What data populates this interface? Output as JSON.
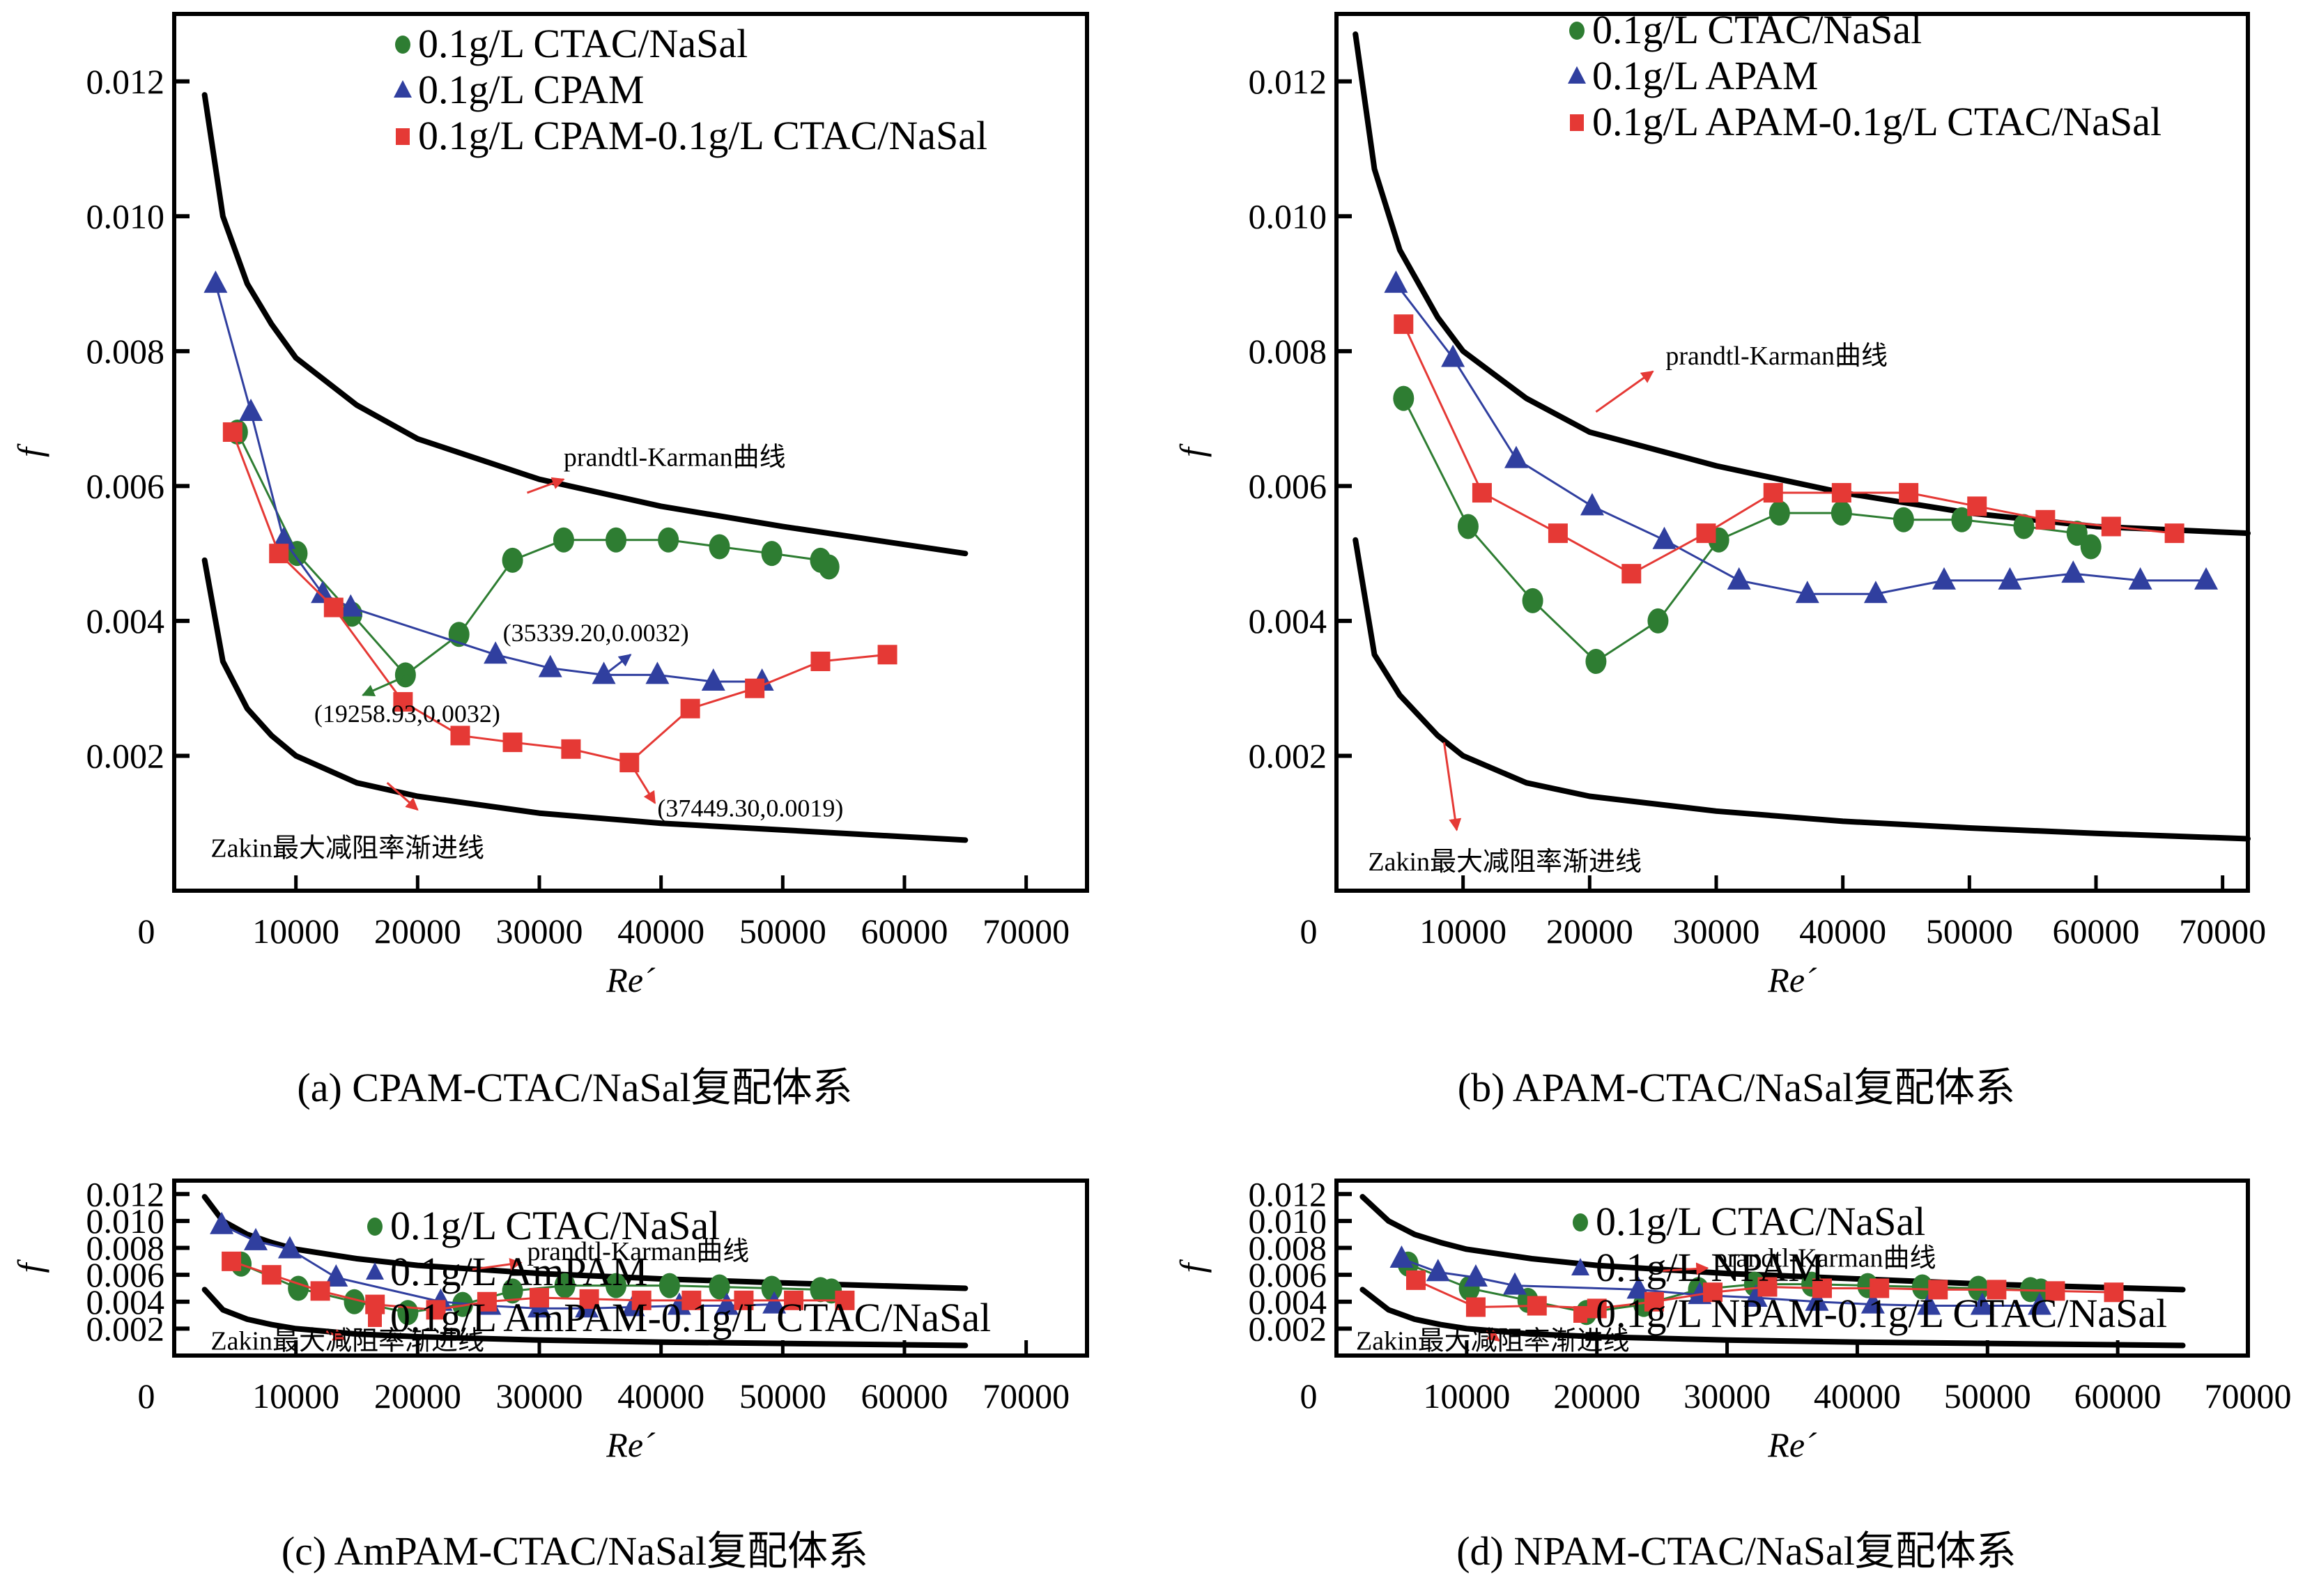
{
  "figure": {
    "colors": {
      "ctac": "#2e7d32",
      "polymer": "#303f9f",
      "mixed": "#e53935",
      "reference": "#000000",
      "arrow": "#e53935"
    }
  },
  "chart_data": [
    {
      "id": "a",
      "type": "line",
      "caption": "(a) CPAM-CTAC/NaSal复配体系",
      "xlabel": "Re´",
      "ylabel": "f",
      "xlim": [
        0,
        75000
      ],
      "ylim": [
        0,
        0.013
      ],
      "xticks": [
        0,
        10000,
        20000,
        30000,
        40000,
        50000,
        60000,
        70000
      ],
      "yticks": [
        0.002,
        0.004,
        0.006,
        0.008,
        0.01,
        0.012
      ],
      "ytick_labels": [
        "0.002",
        "0.004",
        "0.006",
        "0.008",
        "0.010",
        "0.012"
      ],
      "legend_position": "top-center",
      "series": [
        {
          "name": "0.1g/L CTAC/NaSal",
          "marker": "circle",
          "color_key": "ctac",
          "x": [
            5200,
            10100,
            14600,
            19000,
            23400,
            27800,
            32000,
            36300,
            40600,
            44800,
            49100,
            53100,
            53800
          ],
          "y": [
            0.0068,
            0.005,
            0.0041,
            0.0032,
            0.0038,
            0.0049,
            0.0052,
            0.0052,
            0.0052,
            0.0051,
            0.005,
            0.0049,
            0.0048
          ]
        },
        {
          "name": "0.1g/L CPAM",
          "marker": "triangle",
          "color_key": "polymer",
          "x": [
            3400,
            6300,
            9000,
            12200,
            14500,
            26400,
            30900,
            35300,
            39700,
            44300,
            48300
          ],
          "y": [
            0.009,
            0.0071,
            0.0052,
            0.0044,
            0.0042,
            0.0035,
            0.0033,
            0.0032,
            0.0032,
            0.0031,
            0.0031
          ]
        },
        {
          "name": "0.1g/L CPAM-0.1g/L CTAC/NaSal",
          "marker": "square",
          "color_key": "mixed",
          "x": [
            4800,
            8600,
            13100,
            18800,
            23500,
            27800,
            32600,
            37400,
            42400,
            47700,
            53100,
            58600
          ],
          "y": [
            0.0068,
            0.005,
            0.0042,
            0.0028,
            0.0023,
            0.0022,
            0.0021,
            0.0019,
            0.0027,
            0.003,
            0.0034,
            0.0035
          ]
        }
      ],
      "reference_curves": [
        {
          "name": "prandtl-Karman曲线",
          "x": [
            2500,
            4000,
            6000,
            8000,
            10000,
            15000,
            20000,
            30000,
            40000,
            50000,
            65000
          ],
          "y": [
            0.0118,
            0.01,
            0.009,
            0.0084,
            0.0079,
            0.0072,
            0.0067,
            0.0061,
            0.0057,
            0.0054,
            0.005
          ]
        },
        {
          "name": "Zakin最大减阻率渐进线",
          "x": [
            2500,
            4000,
            6000,
            8000,
            10000,
            15000,
            20000,
            30000,
            40000,
            50000,
            65000
          ],
          "y": [
            0.0049,
            0.0034,
            0.0027,
            0.0023,
            0.002,
            0.0016,
            0.0014,
            0.00115,
            0.001,
            0.0009,
            0.00075
          ]
        }
      ],
      "curve_labels": [
        {
          "text": "prandtl-Karman曲线",
          "at": [
            32000,
            0.0063
          ],
          "arrow_from": [
            29000,
            0.0059
          ],
          "arrow_to": [
            32000,
            0.0061
          ]
        },
        {
          "text": "Zakin最大减阻率渐进线",
          "at": [
            3000,
            0.0005
          ],
          "arrow_from": [
            17500,
            0.0016
          ],
          "arrow_to": [
            20000,
            0.0012
          ]
        }
      ],
      "annotations": [
        {
          "text": "(35339.20,0.0032)",
          "at": [
            27000,
            0.0037
          ],
          "arrow_from": [
            35339,
            0.0032
          ],
          "arrow_to": [
            37500,
            0.0035
          ],
          "color_key": "polymer"
        },
        {
          "text": "(19258.93,0.0032)",
          "at": [
            11500,
            0.0025
          ],
          "arrow_from": [
            19259,
            0.0032
          ],
          "arrow_to": [
            15500,
            0.0029
          ],
          "color_key": "ctac"
        },
        {
          "text": "(37449.30,0.0019)",
          "at": [
            39700,
            0.0011
          ],
          "arrow_from": [
            37449,
            0.0019
          ],
          "arrow_to": [
            39500,
            0.0013
          ],
          "color_key": "mixed"
        }
      ]
    },
    {
      "id": "b",
      "type": "line",
      "caption": "(b) APAM-CTAC/NaSal复配体系",
      "xlabel": "Re´",
      "ylabel": "f",
      "xlim": [
        0,
        72000
      ],
      "ylim": [
        0,
        0.013
      ],
      "xticks": [
        0,
        10000,
        20000,
        30000,
        40000,
        50000,
        60000,
        70000
      ],
      "yticks": [
        0.002,
        0.004,
        0.006,
        0.008,
        0.01,
        0.012
      ],
      "ytick_labels": [
        "0.002",
        "0.004",
        "0.006",
        "0.008",
        "0.010",
        "0.012"
      ],
      "legend_position": "top-right",
      "series": [
        {
          "name": "0.1g/L CTAC/NaSal",
          "marker": "circle",
          "color_key": "ctac",
          "x": [
            5300,
            10400,
            15500,
            20500,
            25400,
            30200,
            35000,
            39900,
            44800,
            49400,
            54300,
            58500,
            59600
          ],
          "y": [
            0.0073,
            0.0054,
            0.0043,
            0.0034,
            0.004,
            0.0052,
            0.0056,
            0.0056,
            0.0055,
            0.0055,
            0.0054,
            0.0053,
            0.0051
          ]
        },
        {
          "name": "0.1g/L APAM",
          "marker": "triangle",
          "color_key": "polymer",
          "x": [
            4700,
            9200,
            14200,
            20200,
            25900,
            31800,
            37200,
            42600,
            48000,
            53200,
            58200,
            63500,
            68700
          ],
          "y": [
            0.009,
            0.0079,
            0.0064,
            0.0057,
            0.0052,
            0.0046,
            0.0044,
            0.0044,
            0.0046,
            0.0046,
            0.0047,
            0.0046,
            0.0046
          ]
        },
        {
          "name": "0.1g/L APAM-0.1g/L CTAC/NaSal",
          "marker": "square",
          "color_key": "mixed",
          "x": [
            5300,
            11500,
            17500,
            23300,
            29200,
            34500,
            39900,
            45200,
            50600,
            56000,
            61200,
            66200
          ],
          "y": [
            0.0084,
            0.0059,
            0.0053,
            0.0047,
            0.0053,
            0.0059,
            0.0059,
            0.0059,
            0.0057,
            0.0055,
            0.0054,
            0.0053
          ]
        }
      ],
      "reference_curves": [
        {
          "name": "prandtl-Karman曲线",
          "x": [
            1500,
            3000,
            5000,
            8000,
            10000,
            15000,
            20000,
            30000,
            40000,
            50000,
            60000,
            72000
          ],
          "y": [
            0.0127,
            0.0107,
            0.0095,
            0.0085,
            0.008,
            0.0073,
            0.0068,
            0.0063,
            0.0059,
            0.0056,
            0.0054,
            0.0053
          ]
        },
        {
          "name": "Zakin最大减阻率渐进线",
          "x": [
            1500,
            3000,
            5000,
            8000,
            10000,
            15000,
            20000,
            30000,
            40000,
            50000,
            60000,
            72000
          ],
          "y": [
            0.0052,
            0.0035,
            0.0029,
            0.0023,
            0.002,
            0.0016,
            0.0014,
            0.00118,
            0.00103,
            0.00093,
            0.00085,
            0.00077
          ]
        }
      ],
      "curve_labels": [
        {
          "text": "prandtl-Karman曲线",
          "at": [
            26000,
            0.0078
          ],
          "arrow_from": [
            20500,
            0.0071
          ],
          "arrow_to": [
            25000,
            0.0077
          ]
        },
        {
          "text": "Zakin最大减阻率渐进线",
          "at": [
            2500,
            0.0003
          ],
          "arrow_from": [
            8500,
            0.0022
          ],
          "arrow_to": [
            9500,
            0.0009
          ]
        }
      ],
      "annotations": []
    },
    {
      "id": "c",
      "type": "line",
      "caption": "(c) AmPAM-CTAC/NaSal复配体系",
      "xlabel": "Re´",
      "ylabel": "f",
      "xlim": [
        0,
        75000
      ],
      "ylim": [
        0,
        0.013
      ],
      "xticks": [
        0,
        10000,
        20000,
        30000,
        40000,
        50000,
        60000,
        70000
      ],
      "yticks": [
        0.002,
        0.004,
        0.006,
        0.008,
        0.01,
        0.012
      ],
      "ytick_labels": [
        "0.002",
        "0.004",
        "0.006",
        "0.008",
        "0.010",
        "0.012"
      ],
      "legend_position": "top-center",
      "series": [
        {
          "name": "0.1g/L CTAC/NaSal",
          "marker": "circle",
          "color_key": "ctac",
          "x": [
            5500,
            10200,
            14800,
            19200,
            23700,
            27800,
            32100,
            36300,
            40700,
            44800,
            49100,
            53100,
            54000
          ],
          "y": [
            0.0068,
            0.005,
            0.004,
            0.0032,
            0.0038,
            0.0048,
            0.0052,
            0.0052,
            0.0052,
            0.0051,
            0.005,
            0.0049,
            0.0048
          ]
        },
        {
          "name": "0.1g/L AmPAM",
          "marker": "triangle",
          "color_key": "polymer",
          "x": [
            3900,
            6700,
            9500,
            13300,
            21900,
            25900,
            30000,
            33900,
            37700,
            41500,
            45400,
            49300
          ],
          "y": [
            0.0097,
            0.0085,
            0.0079,
            0.0058,
            0.004,
            0.0037,
            0.0035,
            0.0035,
            0.0036,
            0.0037,
            0.0037,
            0.0038
          ]
        },
        {
          "name": "0.1g/L AmPAM-0.1g/L CTAC/NaSal",
          "marker": "square",
          "color_key": "mixed",
          "x": [
            4700,
            8000,
            12000,
            16500,
            21500,
            25700,
            30000,
            34100,
            38400,
            42500,
            46800,
            50900,
            55100
          ],
          "y": [
            0.007,
            0.006,
            0.0048,
            0.0038,
            0.0034,
            0.004,
            0.0043,
            0.0042,
            0.0041,
            0.0041,
            0.0041,
            0.0041,
            0.0041
          ]
        }
      ],
      "reference_curves": [
        {
          "name": "prandtl-Karman曲线",
          "x": [
            2500,
            4000,
            6000,
            8000,
            10000,
            15000,
            20000,
            30000,
            40000,
            50000,
            65000
          ],
          "y": [
            0.0118,
            0.01,
            0.009,
            0.0084,
            0.0079,
            0.0072,
            0.0067,
            0.0061,
            0.0057,
            0.0054,
            0.005
          ]
        },
        {
          "name": "Zakin最大减阻率渐进线",
          "x": [
            2500,
            4000,
            6000,
            8000,
            10000,
            15000,
            20000,
            30000,
            40000,
            50000,
            65000
          ],
          "y": [
            0.0049,
            0.0034,
            0.0027,
            0.0023,
            0.002,
            0.0016,
            0.0014,
            0.00115,
            0.001,
            0.0009,
            0.00075
          ]
        }
      ],
      "curve_labels": [
        {
          "text": "prandtl-Karman曲线",
          "at": [
            29000,
            0.0071
          ],
          "arrow_from": [
            24500,
            0.0064
          ],
          "arrow_to": [
            28500,
            0.0069
          ]
        },
        {
          "text": "Zakin最大减阻率渐进线",
          "at": [
            3000,
            0.00045
          ],
          "arrow_from": [
            12500,
            0.0018
          ],
          "arrow_to": [
            14000,
            0.0012
          ]
        }
      ],
      "annotations": []
    },
    {
      "id": "d",
      "type": "line",
      "caption": "(d) NPAM-CTAC/NaSal复配体系",
      "xlabel": "Re´",
      "ylabel": "f",
      "xlim": [
        0,
        70000
      ],
      "ylim": [
        0,
        0.013
      ],
      "xticks": [
        0,
        10000,
        20000,
        30000,
        40000,
        50000,
        60000,
        70000
      ],
      "yticks": [
        0.002,
        0.004,
        0.006,
        0.008,
        0.01,
        0.012
      ],
      "ytick_labels": [
        "0.002",
        "0.004",
        "0.006",
        "0.008",
        "0.010",
        "0.012"
      ],
      "legend_position": "top-right",
      "series": [
        {
          "name": "0.1g/L CTAC/NaSal",
          "marker": "circle",
          "color_key": "ctac",
          "x": [
            5500,
            10200,
            14700,
            19200,
            23600,
            27800,
            32100,
            36500,
            40800,
            45000,
            49300,
            53300,
            54100
          ],
          "y": [
            0.0068,
            0.005,
            0.0041,
            0.0032,
            0.0038,
            0.0049,
            0.0053,
            0.0053,
            0.0052,
            0.0051,
            0.005,
            0.0049,
            0.0048
          ]
        },
        {
          "name": "0.1g/L NPAM",
          "marker": "triangle",
          "color_key": "polymer",
          "x": [
            5000,
            7800,
            10700,
            13700,
            23200,
            27900,
            32200,
            36900,
            41200,
            45500,
            49600,
            54000
          ],
          "y": [
            0.0072,
            0.0062,
            0.0058,
            0.0052,
            0.0049,
            0.0045,
            0.0043,
            0.004,
            0.0038,
            0.0037,
            0.0037,
            0.0037
          ]
        },
        {
          "name": "0.1g/L NPAM-0.1g/L CTAC/NaSal",
          "marker": "square",
          "color_key": "mixed",
          "x": [
            6100,
            10700,
            15400,
            20000,
            24400,
            28900,
            33100,
            37300,
            41700,
            46200,
            50700,
            55200,
            59700
          ],
          "y": [
            0.0056,
            0.0036,
            0.0037,
            0.0035,
            0.004,
            0.0047,
            0.0051,
            0.005,
            0.005,
            0.0049,
            0.0049,
            0.0048,
            0.0047
          ]
        }
      ],
      "reference_curves": [
        {
          "name": "prandtl-Karman曲线",
          "x": [
            2000,
            4000,
            6000,
            8000,
            10000,
            15000,
            20000,
            30000,
            40000,
            50000,
            65000
          ],
          "y": [
            0.0118,
            0.01,
            0.009,
            0.0084,
            0.0079,
            0.0072,
            0.0067,
            0.0061,
            0.0057,
            0.0053,
            0.0049
          ]
        },
        {
          "name": "Zakin最大减阻率渐进线",
          "x": [
            2000,
            4000,
            6000,
            8000,
            10000,
            15000,
            20000,
            30000,
            40000,
            50000,
            65000
          ],
          "y": [
            0.0049,
            0.0034,
            0.0027,
            0.0023,
            0.002,
            0.0016,
            0.0014,
            0.00115,
            0.001,
            0.0009,
            0.00075
          ]
        }
      ],
      "curve_labels": [
        {
          "text": "prandtl-Karman曲线",
          "at": [
            29000,
            0.0066
          ],
          "arrow_from": [
            25000,
            0.0063
          ],
          "arrow_to": [
            28500,
            0.0065
          ]
        },
        {
          "text": "Zakin最大减阻率渐进线",
          "at": [
            1500,
            0.00045
          ],
          "arrow_from": [
            11500,
            0.0018
          ],
          "arrow_to": [
            12500,
            0.0011
          ]
        }
      ],
      "annotations": []
    }
  ]
}
